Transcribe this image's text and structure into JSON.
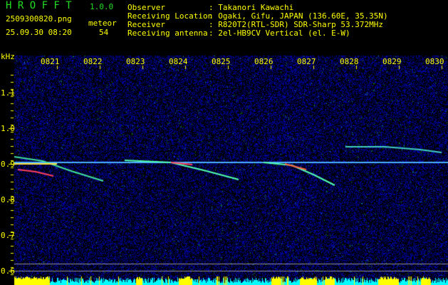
{
  "app": {
    "title": "H R O F F T",
    "version": "1.0.0"
  },
  "file": {
    "name": "2509300820.png",
    "datetime": "25.09.30 08:20"
  },
  "meteor": {
    "label": "meteor",
    "count": "54"
  },
  "info": [
    {
      "key": "Observer",
      "value": ": Takanori Kawachi"
    },
    {
      "key": "Receiving Location",
      "value": ": Ogaki, Gifu, JAPAN (136.60E, 35.35N)"
    },
    {
      "key": "Receiver",
      "value": ": R820T2(RTL-SDR) SDR-Sharp 53.372MHz"
    },
    {
      "key": "Receiving antenna",
      "value": ": 2el-HB9CV Vertical (el. E-W)"
    }
  ],
  "axis": {
    "y_unit": "kHz",
    "y_ticks": [
      "1.1",
      "1.0",
      "0.9",
      "0.8",
      "0.7",
      "0.6"
    ],
    "x_ticks": [
      "0821",
      "0822",
      "0823",
      "0824",
      "0825",
      "0826",
      "0827",
      "0828",
      "0829",
      "0830"
    ]
  },
  "colors": {
    "text": "#ffff00",
    "title": "#22dd22",
    "noise": "#0000c0",
    "count_bar": "#ffff00",
    "count_base": "#00ffff"
  }
}
